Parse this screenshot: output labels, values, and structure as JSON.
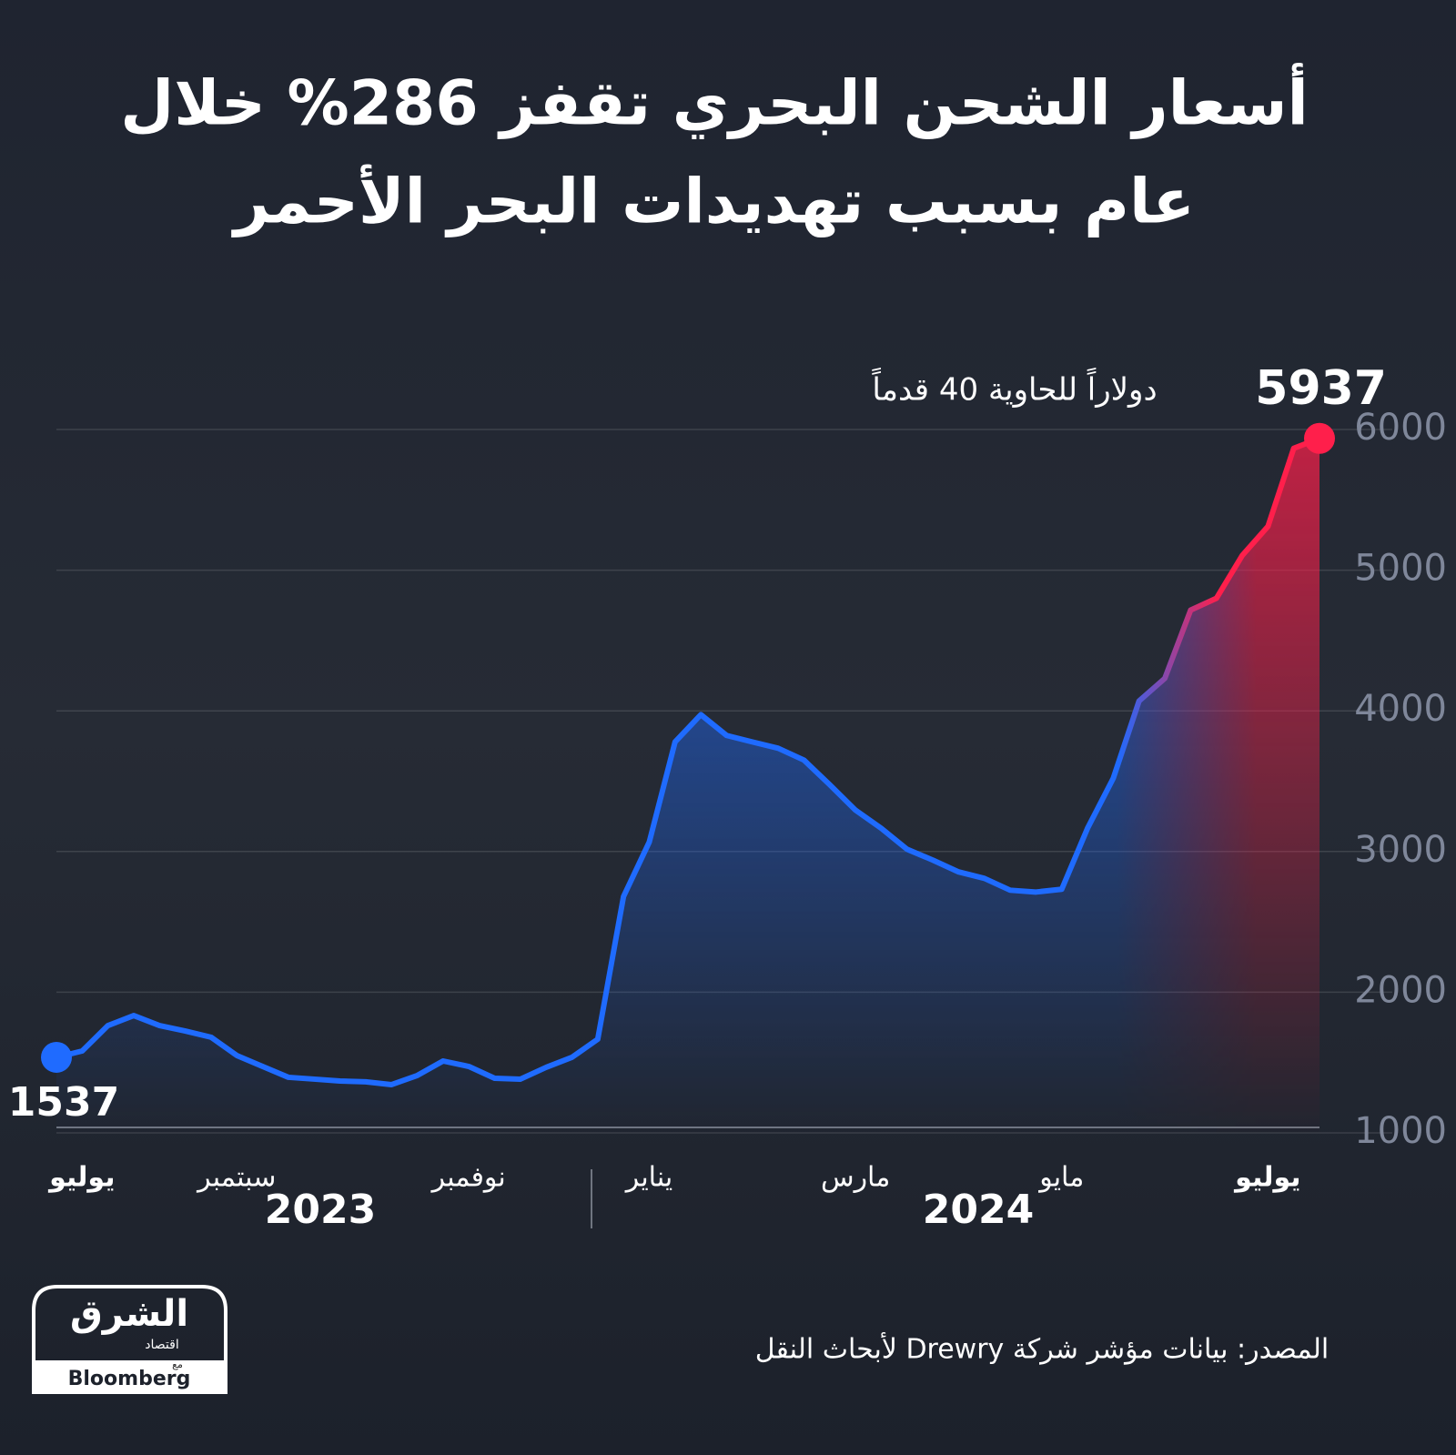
{
  "chart_data": {
    "type": "line",
    "title_lines": [
      "أسعار الشحن البحري تقفز 286% خلال",
      "عام بسبب تهديدات البحر الأحمر"
    ],
    "unit_annotation": "دولاراً للحاوية 40 قدماً",
    "categories": [
      null,
      "يوليو",
      null,
      null,
      null,
      null,
      null,
      "سبتمبر",
      null,
      null,
      null,
      null,
      null,
      null,
      null,
      null,
      "نوفمبر",
      null,
      null,
      null,
      null,
      null,
      null,
      "يناير",
      null,
      null,
      null,
      null,
      null,
      null,
      null,
      "مارس",
      null,
      null,
      null,
      null,
      null,
      null,
      null,
      "مايو",
      null,
      null,
      null,
      null,
      null,
      null,
      null,
      "يوليو",
      null,
      null
    ],
    "bold_categories": [
      "يوليو"
    ],
    "year_labels": [
      "2023",
      "2024"
    ],
    "series": [
      {
        "name": "Drewry",
        "color": "#1f6bff",
        "end_color": "#ff1f4b",
        "values": [
          1537,
          1582,
          1763,
          1834,
          1763,
          1724,
          1680,
          1550,
          1472,
          1395,
          1382,
          1369,
          1363,
          1343,
          1408,
          1511,
          1472,
          1388,
          1382,
          1466,
          1537,
          1666,
          2680,
          3068,
          3779,
          3973,
          3825,
          3779,
          3734,
          3650,
          3475,
          3294,
          3165,
          3016,
          2939,
          2855,
          2809,
          2725,
          2712,
          2732,
          3165,
          3521,
          4070,
          4231,
          4716,
          4800,
          5104,
          5311,
          5866,
          5937
        ]
      }
    ],
    "ylim": [
      1000,
      6000
    ],
    "yticks": [
      1000,
      2000,
      3000,
      4000,
      5000,
      6000
    ],
    "grid": true,
    "source": "المصدر: بيانات مؤشر شركة  Drewry لأبحاث النقل",
    "logo": {
      "name": "الشرق",
      "sub": "اقتصاد",
      "with": "مع",
      "partner": "Bloomberg"
    }
  }
}
